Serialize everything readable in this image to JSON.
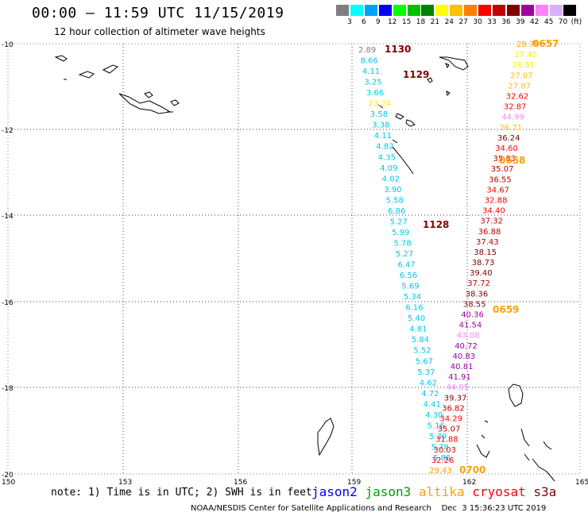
{
  "header": {
    "title": "00:00 — 11:59 UTC 11/15/2019",
    "subtitle": "12 hour collection of altimeter wave heights"
  },
  "legend": {
    "unit": "(ft)",
    "bins": [
      {
        "label": "3",
        "color": "#7f7f7f"
      },
      {
        "label": "6",
        "color": "#00ffff"
      },
      {
        "label": "9",
        "color": "#00a0ff"
      },
      {
        "label": "12",
        "color": "#0000ff"
      },
      {
        "label": "15",
        "color": "#00ff00"
      },
      {
        "label": "18",
        "color": "#00c000"
      },
      {
        "label": "21",
        "color": "#008000"
      },
      {
        "label": "24",
        "color": "#ffff00"
      },
      {
        "label": "27",
        "color": "#ffc000"
      },
      {
        "label": "30",
        "color": "#ff8000"
      },
      {
        "label": "33",
        "color": "#ff0000"
      },
      {
        "label": "36",
        "color": "#c00000"
      },
      {
        "label": "39",
        "color": "#800000"
      },
      {
        "label": "42",
        "color": "#a000a0"
      },
      {
        "label": "45",
        "color": "#ff80ff"
      },
      {
        "label": "70",
        "color": "#d8b0ff"
      },
      {
        "label": "",
        "color": "#000000"
      }
    ]
  },
  "map": {
    "lon_ticks": [
      "150",
      "153",
      "156",
      "159",
      "162",
      "165"
    ],
    "lat_ticks": [
      "-10",
      "-12",
      "-14",
      "-16",
      "-18",
      "-20"
    ],
    "jason3_track": [
      {
        "v": "2.89",
        "c": "#7f7f7f"
      },
      {
        "v": "8.66",
        "c": "#00c8e8"
      },
      {
        "v": "4.11",
        "c": "#00c8e8"
      },
      {
        "v": "3.25",
        "c": "#00c8e8"
      },
      {
        "v": "3.66",
        "c": "#00c8e8"
      },
      {
        "v": "23.24",
        "c": "#ffee00"
      },
      {
        "v": "3.58",
        "c": "#00c8e8"
      },
      {
        "v": "3.38",
        "c": "#00c8e8"
      },
      {
        "v": "4.11",
        "c": "#00c8e8"
      },
      {
        "v": "4.82",
        "c": "#00c8e8"
      },
      {
        "v": "4.35",
        "c": "#00c8e8"
      },
      {
        "v": "4.09",
        "c": "#00c8e8"
      },
      {
        "v": "4.02",
        "c": "#00c8e8"
      },
      {
        "v": "3.90",
        "c": "#00c8e8"
      },
      {
        "v": "5.58",
        "c": "#00c8e8"
      },
      {
        "v": "6.86",
        "c": "#00c8e8"
      },
      {
        "v": "5.27",
        "c": "#00c8e8"
      },
      {
        "v": "5.99",
        "c": "#00c8e8"
      },
      {
        "v": "5.78",
        "c": "#00c8e8"
      },
      {
        "v": "5.27",
        "c": "#00c8e8"
      },
      {
        "v": "6.47",
        "c": "#00c8e8"
      },
      {
        "v": "6.56",
        "c": "#00c8e8"
      },
      {
        "v": "5.69",
        "c": "#00c8e8"
      },
      {
        "v": "5.34",
        "c": "#00c8e8"
      },
      {
        "v": "6.16",
        "c": "#00c8e8"
      },
      {
        "v": "5.40",
        "c": "#00c8e8"
      },
      {
        "v": "4.81",
        "c": "#00c8e8"
      },
      {
        "v": "5.84",
        "c": "#00c8e8"
      },
      {
        "v": "5.52",
        "c": "#00c8e8"
      },
      {
        "v": "5.67",
        "c": "#00c8e8"
      },
      {
        "v": "5.37",
        "c": "#00c8e8"
      },
      {
        "v": "4.62",
        "c": "#00c8e8"
      },
      {
        "v": "4.72",
        "c": "#00c8e8"
      },
      {
        "v": "4.41",
        "c": "#00c8e8"
      },
      {
        "v": "4.30",
        "c": "#00c8e8"
      },
      {
        "v": "5.16",
        "c": "#00c8e8"
      },
      {
        "v": "5.39",
        "c": "#00c8e8"
      },
      {
        "v": "5.78",
        "c": "#00c8e8"
      },
      {
        "v": "5.88",
        "c": "#00c8e8"
      }
    ],
    "s3a_track": [
      {
        "v": "28.79",
        "c": "#ffa000"
      },
      {
        "v": "27.42",
        "c": "#ffee00"
      },
      {
        "v": "26.51",
        "c": "#ffee00"
      },
      {
        "v": "27.07",
        "c": "#ffc000"
      },
      {
        "v": "27.87",
        "c": "#ffc000"
      },
      {
        "v": "32.62",
        "c": "#ff0000"
      },
      {
        "v": "32.87",
        "c": "#ff0000"
      },
      {
        "v": "44.99",
        "c": "#ff80ff"
      },
      {
        "v": "26.71",
        "c": "#ffc000"
      },
      {
        "v": "36.24",
        "c": "#800000"
      },
      {
        "v": "34.60",
        "c": "#ff0000"
      },
      {
        "v": "35.83",
        "c": "#c00000"
      },
      {
        "v": "35.07",
        "c": "#c00000"
      },
      {
        "v": "36.55",
        "c": "#c00000"
      },
      {
        "v": "34.67",
        "c": "#ff0000"
      },
      {
        "v": "32.88",
        "c": "#ff0000"
      },
      {
        "v": "34.40",
        "c": "#ff0000"
      },
      {
        "v": "37.32",
        "c": "#c00000"
      },
      {
        "v": "36.88",
        "c": "#c00000"
      },
      {
        "v": "37.43",
        "c": "#c00000"
      },
      {
        "v": "38.15",
        "c": "#800000"
      },
      {
        "v": "38.73",
        "c": "#800000"
      },
      {
        "v": "39.40",
        "c": "#800000"
      },
      {
        "v": "37.72",
        "c": "#c00000"
      },
      {
        "v": "38.36",
        "c": "#800000"
      },
      {
        "v": "38.55",
        "c": "#800000"
      },
      {
        "v": "40.36",
        "c": "#a000a0"
      },
      {
        "v": "41.54",
        "c": "#a000a0"
      },
      {
        "v": "43.08",
        "c": "#ff80ff"
      },
      {
        "v": "40.72",
        "c": "#a000a0"
      },
      {
        "v": "40.83",
        "c": "#a000a0"
      },
      {
        "v": "40.81",
        "c": "#a000a0"
      },
      {
        "v": "41.91",
        "c": "#a000a0"
      },
      {
        "v": "44.95",
        "c": "#ff80ff"
      },
      {
        "v": "39.37",
        "c": "#800000"
      },
      {
        "v": "36.82",
        "c": "#c00000"
      },
      {
        "v": "34.29",
        "c": "#ff0000"
      },
      {
        "v": "35.07",
        "c": "#c00000"
      },
      {
        "v": "31.88",
        "c": "#ff0000"
      },
      {
        "v": "30.03",
        "c": "#ff0000"
      },
      {
        "v": "32.26",
        "c": "#ff0000"
      },
      {
        "v": "29.43",
        "c": "#ffa000"
      }
    ],
    "time_labels": [
      {
        "t": "1130",
        "c": "#800000"
      },
      {
        "t": "1129",
        "c": "#800000"
      },
      {
        "t": "1128",
        "c": "#800000"
      },
      {
        "t": "0657",
        "c": "#ffa000"
      },
      {
        "t": "0658",
        "c": "#ffa000"
      },
      {
        "t": "0659",
        "c": "#ffa000"
      },
      {
        "t": "0700",
        "c": "#ffa000"
      }
    ]
  },
  "footer": {
    "note": "note: 1) Time is in UTC; 2) SWH is in feet",
    "satellites": [
      {
        "name": "jason2",
        "color": "#0000ff"
      },
      {
        "name": "jason3",
        "color": "#00a000"
      },
      {
        "name": "altika",
        "color": "#ffa000"
      },
      {
        "name": "cryosat",
        "color": "#ff0000"
      },
      {
        "name": "s3a",
        "color": "#800000"
      }
    ],
    "credit": "NOAA/NESDIS Center for Satellite Applications and Research    Dec  3 15:36:23 UTC 2019"
  }
}
